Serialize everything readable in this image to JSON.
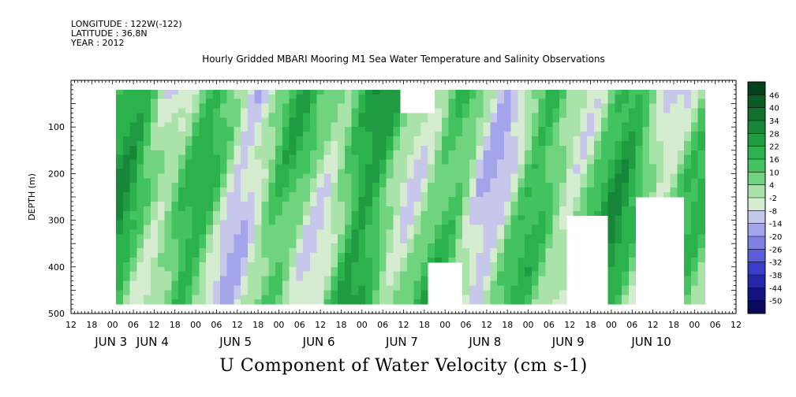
{
  "header": {
    "longitude": "LONGITUDE : 122W(-122)",
    "latitude": "LATITUDE : 36.8N",
    "year": "YEAR : 2012",
    "title": "Hourly Gridded MBARI Mooring M1 Sea Water Temperature and Salinity Observations"
  },
  "chart_data": {
    "type": "heatmap",
    "title": "Hourly Gridded MBARI Mooring M1 Sea Water Temperature and Salinity Observations",
    "xlabel": "",
    "ylabel": "DEPTH (m)",
    "bottom_label": "U Component of Water Velocity (cm s-1)",
    "x_start_hours": -12,
    "x_end_hours": 180,
    "x_hour_ticks": [
      "12",
      "18",
      "00",
      "06",
      "12",
      "18",
      "00",
      "06",
      "12",
      "18",
      "00",
      "06",
      "12",
      "18",
      "00",
      "06",
      "12",
      "18",
      "00",
      "06",
      "12",
      "18",
      "00",
      "06",
      "12",
      "18",
      "00",
      "06",
      "12",
      "18",
      "00",
      "06",
      "12"
    ],
    "day_labels": [
      "JUN  3",
      "JUN  4",
      "JUN  5",
      "JUN  6",
      "JUN  7",
      "JUN  8",
      "JUN  9",
      "JUN 10"
    ],
    "day_label_hours": [
      0,
      12,
      36,
      60,
      84,
      108,
      132,
      156
    ],
    "yticks": [
      100,
      200,
      300,
      400,
      500
    ],
    "yticklabels": [
      "100",
      "200",
      "300",
      "400",
      "500"
    ],
    "ylim": [
      500,
      0
    ],
    "colorbar": {
      "levels": [
        "46",
        "40",
        "34",
        "28",
        "22",
        "16",
        "10",
        "4",
        "-2",
        "-8",
        "-14",
        "-20",
        "-26",
        "-32",
        "-38",
        "-44",
        "-50"
      ],
      "colors": [
        "#04401a",
        "#0a5a24",
        "#11702e",
        "#178638",
        "#1f9b42",
        "#2bb24d",
        "#43c35f",
        "#6fd37f",
        "#a9e3a9",
        "#d5ecd0",
        "#c7c7ec",
        "#a3a4ea",
        "#7f80e4",
        "#5a5cda",
        "#3a3cc9",
        "#2526a8",
        "#141480",
        "#0a0a5c"
      ]
    },
    "data_dominant_range": [
      -20,
      28
    ],
    "missing_regions": [
      {
        "t_start": 90,
        "t_end": 100,
        "depth_start": 390,
        "depth_end": 480
      },
      {
        "t_start": 130,
        "t_end": 142,
        "depth_start": 290,
        "depth_end": 480
      },
      {
        "t_start": 150,
        "t_end": 164,
        "depth_start": 250,
        "depth_end": 480
      },
      {
        "t_start": 83,
        "t_end": 92,
        "depth_start": 20,
        "depth_end": 60
      }
    ]
  }
}
